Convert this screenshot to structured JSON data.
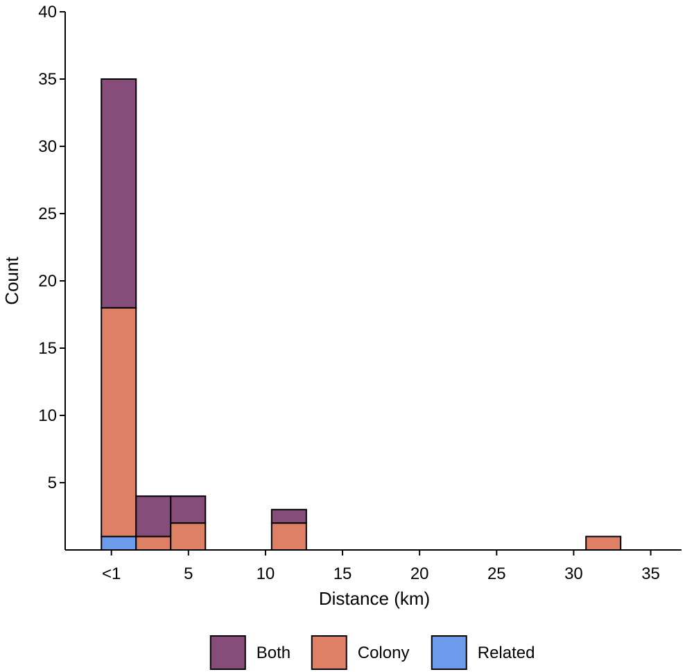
{
  "chart_data": {
    "type": "bar",
    "stacked": true,
    "title": "",
    "xlabel": "Distance (km)",
    "ylabel": "Count",
    "xlim": [
      -3,
      37
    ],
    "ylim": [
      0,
      40
    ],
    "x_ticks": [
      {
        "value": 0,
        "label": "<1"
      },
      {
        "value": 5,
        "label": "5"
      },
      {
        "value": 10,
        "label": "10"
      },
      {
        "value": 15,
        "label": "15"
      },
      {
        "value": 20,
        "label": "20"
      },
      {
        "value": 25,
        "label": "25"
      },
      {
        "value": 30,
        "label": "30"
      },
      {
        "value": 35,
        "label": "35"
      }
    ],
    "y_ticks": [
      5,
      10,
      15,
      20,
      25,
      30,
      35,
      40
    ],
    "bins": [
      {
        "x0": -0.65,
        "x1": 1.6
      },
      {
        "x0": 1.6,
        "x1": 3.85
      },
      {
        "x0": 3.85,
        "x1": 6.1
      },
      {
        "x0": 10.4,
        "x1": 12.65
      },
      {
        "x0": 30.8,
        "x1": 33.05
      }
    ],
    "series": [
      {
        "name": "Related",
        "color": "#6b9bea",
        "values": [
          1,
          0,
          0,
          0,
          0
        ]
      },
      {
        "name": "Colony",
        "color": "#de8066",
        "values": [
          17,
          1,
          2,
          2,
          1
        ]
      },
      {
        "name": "Both",
        "color": "#864d7a",
        "values": [
          17,
          3,
          2,
          1,
          0
        ]
      }
    ],
    "legend": {
      "placement": "bottom",
      "order": [
        "Both",
        "Colony",
        "Related"
      ]
    },
    "grid": false
  }
}
